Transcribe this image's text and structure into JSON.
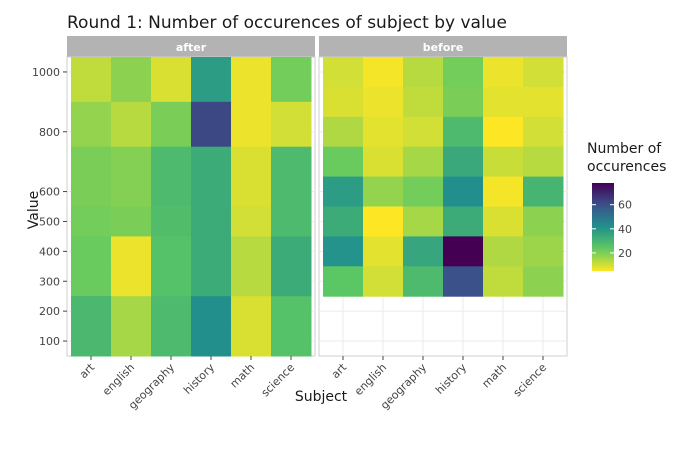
{
  "chart_data": {
    "type": "heatmap",
    "title": "Round 1: Number of occurences of subject by value",
    "xlabel": "Subject",
    "ylabel": "Value",
    "categories": [
      "art",
      "english",
      "geography",
      "history",
      "math",
      "science"
    ],
    "y": [
      1000,
      900,
      800,
      700,
      600,
      500,
      400,
      300,
      200,
      100
    ],
    "y_ticks": [
      100,
      200,
      300,
      400,
      500,
      600,
      800,
      1000
    ],
    "facets": [
      {
        "name": "after",
        "rows": [
          {
            "y": 1000,
            "values": [
              12,
              18,
              9,
              38,
              7,
              21
            ]
          },
          {
            "y": 800,
            "values": [
              17,
              13,
              20,
              62,
              7,
              10
            ]
          },
          {
            "y": 700,
            "values": [
              20,
              19,
              28,
              33,
              9,
              28
            ]
          },
          {
            "y": 600,
            "values": [
              20,
              19,
              28,
              33,
              9,
              28
            ]
          },
          {
            "y": 500,
            "values": [
              21,
              20,
              27,
              33,
              10,
              28
            ]
          },
          {
            "y": 400,
            "values": [
              22,
              7,
              26,
              33,
              13,
              33
            ]
          },
          {
            "y": 300,
            "values": [
              22,
              7,
              26,
              33,
              13,
              33
            ]
          },
          {
            "y": 200,
            "values": [
              29,
              15,
              28,
              42,
              9,
              26
            ]
          },
          {
            "y": 100,
            "values": [
              29,
              15,
              28,
              42,
              9,
              26
            ]
          }
        ]
      },
      {
        "name": "before",
        "rows": [
          {
            "y": 1000,
            "values": [
              10,
              6,
              13,
              21,
              7,
              10
            ]
          },
          {
            "y": 900,
            "values": [
              9,
              7,
              12,
              20,
              8,
              8
            ]
          },
          {
            "y": 800,
            "values": [
              14,
              8,
              10,
              28,
              4,
              10
            ]
          },
          {
            "y": 700,
            "values": [
              22,
              9,
              15,
              34,
              11,
              13
            ]
          },
          {
            "y": 600,
            "values": [
              38,
              17,
              21,
              42,
              6,
              30
            ]
          },
          {
            "y": 500,
            "values": [
              33,
              4,
              15,
              33,
              9,
              18
            ]
          },
          {
            "y": 400,
            "values": [
              41,
              8,
              35,
              80,
              14,
              16
            ]
          },
          {
            "y": 300,
            "values": [
              24,
              10,
              28,
              60,
              12,
              18
            ]
          }
        ]
      }
    ],
    "legend": {
      "title_lines": [
        "Number of",
        "occurences"
      ],
      "ticks": [
        20,
        40,
        60
      ],
      "range": [
        5,
        78
      ],
      "placement": "right"
    },
    "grid": true
  }
}
